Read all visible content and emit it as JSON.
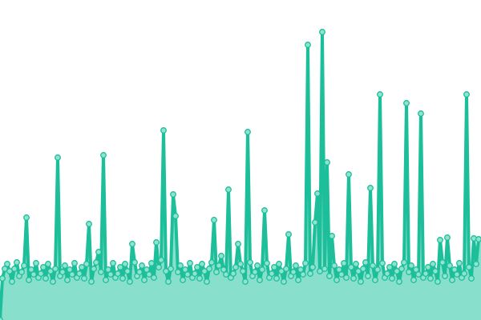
{
  "chart_data": {
    "type": "area",
    "title": "",
    "xlabel": "",
    "ylabel": "",
    "grid": false,
    "axes_visible": false,
    "ylim": [
      0,
      400
    ],
    "colors": {
      "line": "#1dbf9b",
      "fill": "#88e0cc",
      "marker_fill": "#8fe3cf",
      "marker_stroke": "#1dbf9b"
    },
    "values": [
      0,
      52,
      64,
      70,
      61,
      48,
      64,
      72,
      55,
      60,
      68,
      128,
      50,
      63,
      57,
      71,
      53,
      58,
      66,
      52,
      70,
      61,
      48,
      64,
      203,
      55,
      60,
      68,
      50,
      63,
      57,
      71,
      53,
      58,
      66,
      52,
      70,
      120,
      48,
      64,
      72,
      85,
      60,
      206,
      50,
      63,
      57,
      71,
      53,
      58,
      66,
      52,
      70,
      61,
      48,
      95,
      72,
      55,
      60,
      68,
      50,
      63,
      57,
      71,
      53,
      97,
      66,
      75,
      237,
      61,
      48,
      64,
      157,
      130,
      60,
      68,
      50,
      63,
      57,
      71,
      53,
      58,
      66,
      52,
      70,
      61,
      48,
      64,
      72,
      125,
      60,
      68,
      80,
      63,
      57,
      163,
      53,
      58,
      66,
      95,
      70,
      61,
      48,
      235,
      72,
      55,
      60,
      68,
      50,
      63,
      137,
      71,
      53,
      58,
      66,
      52,
      70,
      61,
      48,
      64,
      107,
      55,
      60,
      68,
      50,
      63,
      57,
      71,
      344,
      58,
      66,
      122,
      158,
      61,
      360,
      64,
      197,
      55,
      105,
      68,
      50,
      63,
      57,
      71,
      53,
      182,
      66,
      52,
      70,
      61,
      48,
      64,
      72,
      55,
      165,
      68,
      50,
      63,
      282,
      71,
      53,
      58,
      66,
      52,
      70,
      61,
      48,
      64,
      72,
      271,
      60,
      68,
      50,
      63,
      57,
      258,
      53,
      58,
      66,
      52,
      70,
      61,
      48,
      100,
      72,
      55,
      103,
      68,
      50,
      63,
      57,
      71,
      53,
      58,
      282,
      66,
      52,
      102,
      70,
      101
    ]
  }
}
